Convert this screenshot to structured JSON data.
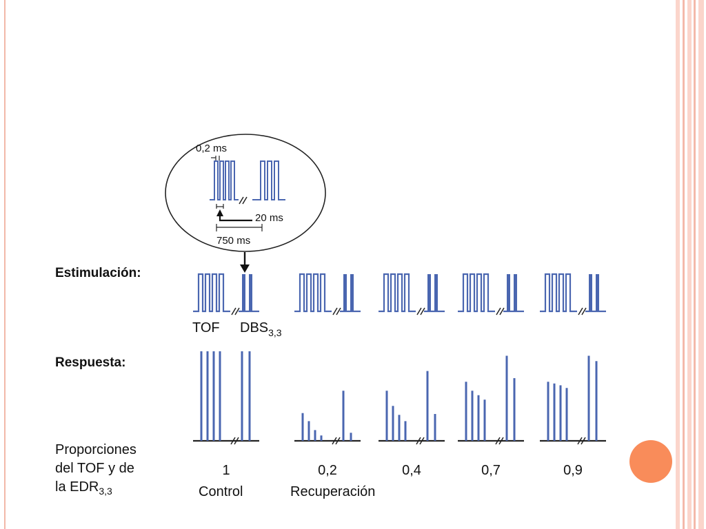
{
  "inset": {
    "pulse_width_label": "0,2 ms",
    "interval_label": "20 ms",
    "period_label": "750 ms"
  },
  "labels": {
    "stimulation": "Estimulación:",
    "response": "Respuesta:",
    "tof": "TOF",
    "dbs": "DBS",
    "dbs_subscript": "3,3",
    "ratios_line1": "Proporciones",
    "ratios_line2": "del TOF y de",
    "ratios_line3": "la EDR",
    "ratios_subscript": "3,3",
    "control": "Control",
    "recovery": "Recuperación"
  },
  "groups": [
    {
      "ratio": "1",
      "tof": [
        1.0,
        1.0,
        1.0,
        1.0
      ],
      "dbs": [
        1.0,
        1.0
      ]
    },
    {
      "ratio": "0,2",
      "tof": [
        0.31,
        0.22,
        0.12,
        0.06
      ],
      "dbs": [
        0.56,
        0.09
      ]
    },
    {
      "ratio": "0,4",
      "tof": [
        0.56,
        0.39,
        0.29,
        0.22
      ],
      "dbs": [
        0.78,
        0.3
      ]
    },
    {
      "ratio": "0,7",
      "tof": [
        0.66,
        0.56,
        0.51,
        0.46
      ],
      "dbs": [
        0.95,
        0.7
      ]
    },
    {
      "ratio": "0,9",
      "tof": [
        0.66,
        0.64,
        0.62,
        0.59
      ],
      "dbs": [
        0.95,
        0.89
      ]
    }
  ],
  "colors": {
    "pulse": "#4a66b0",
    "accent_circle": "#f98c5a",
    "frame": "#f4b9aa"
  }
}
